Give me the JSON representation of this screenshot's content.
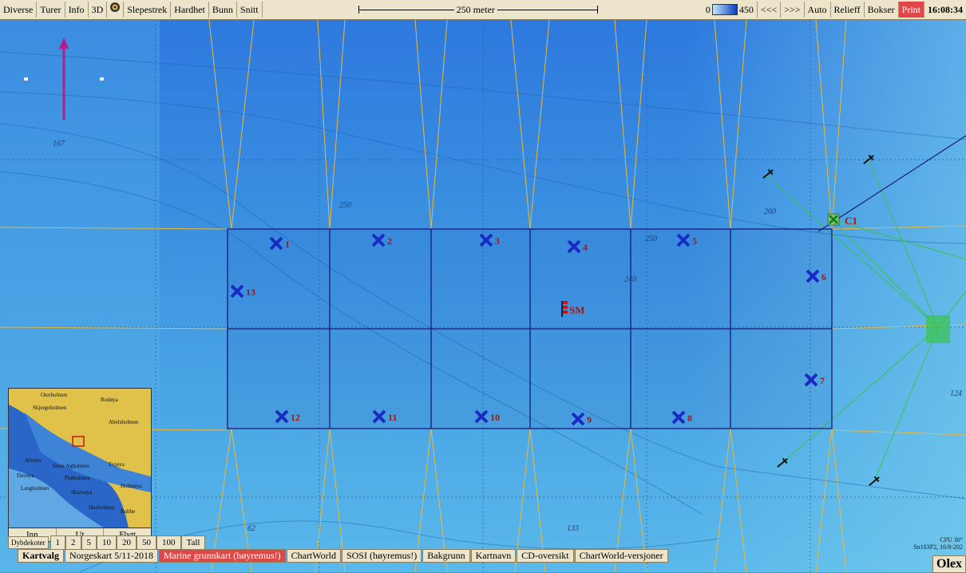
{
  "toolbar": {
    "left_items": [
      "Diverse",
      "Turer",
      "Info",
      "3D",
      "Slepestrek",
      "Hardhet",
      "Bunn",
      "Snitt"
    ],
    "scale_label": "250 meter",
    "depth_min": "0",
    "depth_max": "450",
    "right_items": [
      "<<<",
      ">>>",
      "Auto",
      "Relieff",
      "Bokser"
    ],
    "print_label": "Print",
    "clock": "16:08:34"
  },
  "map": {
    "waypoints": [
      {
        "label": "1"
      },
      {
        "label": "2"
      },
      {
        "label": "3"
      },
      {
        "label": "4"
      },
      {
        "label": "5"
      },
      {
        "label": "6"
      },
      {
        "label": "7"
      },
      {
        "label": "8"
      },
      {
        "label": "9"
      },
      {
        "label": "10"
      },
      {
        "label": "11"
      },
      {
        "label": "12"
      },
      {
        "label": "13"
      }
    ],
    "marker_sm": "SM",
    "marker_c1": "C1",
    "depth_labels": [
      "167",
      "250",
      "260",
      "250",
      "240",
      "124",
      "62",
      "133"
    ],
    "colors": {
      "grid_line": "#1a1a7a",
      "waypoint": "#1a2bc4",
      "waypoint_label": "#a01818",
      "track": "#e8b840",
      "green_track": "#39c44a"
    }
  },
  "minimap": {
    "buttons": [
      "Inn",
      "Ut",
      "Flytt"
    ],
    "place_names": [
      "Oterholmen",
      "Rodøya",
      "Skjergeholmen",
      "Abelsholmen",
      "Alvøya",
      "Store Agholmen",
      "Davøya",
      "Flatholmen",
      "Langholmen",
      "Holmøya",
      "Evjøya",
      "Skarvøya",
      "Husholmen",
      "Rubbe"
    ]
  },
  "depth_bar": {
    "label": "Dybdekoter",
    "values": [
      "1",
      "2",
      "5",
      "10",
      "20",
      "50",
      "100",
      "Tall"
    ]
  },
  "bottom_bar": {
    "title": "Kartvalg",
    "items": [
      "Norgeskart 5/11-2018",
      "Marine grunnkart (høyremus!)",
      "ChartWorld",
      "SOSI (høyremus!)",
      "Bakgrunn",
      "Kartnavn",
      "CD-oversikt",
      "ChartWorld-versjoner"
    ]
  },
  "status": {
    "cpu_line1": "CPU 30°",
    "cpu_line2": "Sn103P2, 16/8-202",
    "brand": "Olex"
  }
}
